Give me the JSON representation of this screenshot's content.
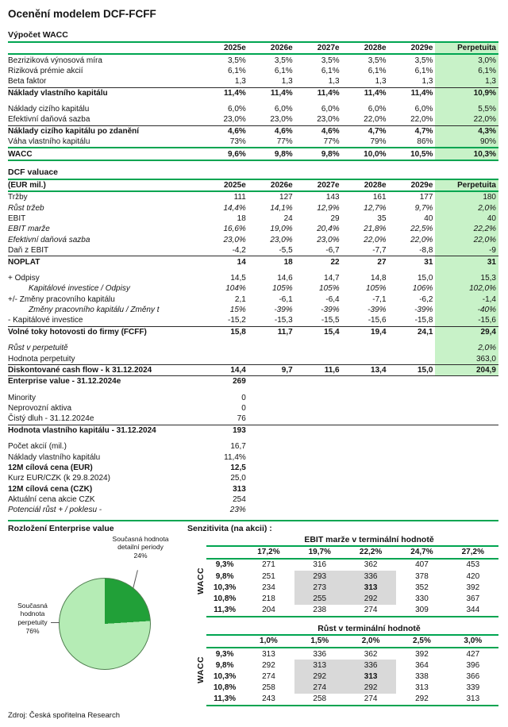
{
  "title": "Ocenění modelem DCF-FCFF",
  "source": "Zdroj: Česká spořitelna Research",
  "colors": {
    "line_green": "#00a551",
    "highlight_green": "#c8f2c8",
    "pie_dark": "#21a038",
    "pie_light": "#b5ecb5",
    "sens_gray": "#d9d9d9"
  },
  "wacc": {
    "heading": "Výpočet WACC",
    "columns": [
      "",
      "2025e",
      "2026e",
      "2027e",
      "2028e",
      "2029e",
      "Perpetuita"
    ],
    "rows": [
      {
        "label": "Bezriziková výnosová míra",
        "values": [
          "3,5%",
          "3,5%",
          "3,5%",
          "3,5%",
          "3,5%",
          "3,0%"
        ],
        "hl": true
      },
      {
        "label": "Riziková prémie akcií",
        "values": [
          "6,1%",
          "6,1%",
          "6,1%",
          "6,1%",
          "6,1%",
          "6,1%"
        ],
        "hl": true
      },
      {
        "label": "Beta faktor",
        "values": [
          "1,3",
          "1,3",
          "1,3",
          "1,3",
          "1,3",
          "1,3"
        ],
        "hl": true
      },
      {
        "label": "Náklady vlastního kapitálu",
        "values": [
          "11,4%",
          "11,4%",
          "11,4%",
          "11,4%",
          "11,4%",
          "10,9%"
        ],
        "style": "bold",
        "line": "black",
        "hl": true
      },
      {
        "spacer": true,
        "hl": true
      },
      {
        "label": "Náklady cizího kapitálu",
        "values": [
          "6,0%",
          "6,0%",
          "6,0%",
          "6,0%",
          "6,0%",
          "5,5%"
        ],
        "hl": true
      },
      {
        "label": "Efektivní daňová sazba",
        "values": [
          "23,0%",
          "23,0%",
          "23,0%",
          "22,0%",
          "22,0%",
          "22,0%"
        ],
        "hl": true
      },
      {
        "label": "Náklady cizího kapitálu po zdanění",
        "values": [
          "4,6%",
          "4,6%",
          "4,6%",
          "4,7%",
          "4,7%",
          "4,3%"
        ],
        "style": "bold",
        "line": "black",
        "hl": true
      },
      {
        "label": "Váha vlastního kapitálu",
        "values": [
          "73%",
          "77%",
          "77%",
          "79%",
          "86%",
          "90%"
        ],
        "hl": true
      },
      {
        "label": "WACC",
        "values": [
          "9,6%",
          "9,8%",
          "9,8%",
          "10,0%",
          "10,5%",
          "10,3%"
        ],
        "style": "bold",
        "line": "green",
        "bline": "green",
        "hl": true
      }
    ]
  },
  "dcf": {
    "heading": "DCF valuace",
    "columns": [
      "(EUR mil.)",
      "2025e",
      "2026e",
      "2027e",
      "2028e",
      "2029e",
      "Perpetuita"
    ],
    "rows": [
      {
        "label": "Tržby",
        "values": [
          "111",
          "127",
          "143",
          "161",
          "177",
          "180"
        ],
        "hl": true
      },
      {
        "label": "Růst tržeb",
        "values": [
          "14,4%",
          "14,1%",
          "12,9%",
          "12,7%",
          "9,7%",
          "2,0%"
        ],
        "style": "italic",
        "hl": true
      },
      {
        "label": "EBIT",
        "values": [
          "18",
          "24",
          "29",
          "35",
          "40",
          "40"
        ],
        "hl": true
      },
      {
        "label": "EBIT marže",
        "values": [
          "16,6%",
          "19,0%",
          "20,4%",
          "21,8%",
          "22,5%",
          "22,2%"
        ],
        "style": "italic",
        "hl": true
      },
      {
        "label": "Efektivní daňová sazba",
        "values": [
          "23,0%",
          "23,0%",
          "23,0%",
          "22,0%",
          "22,0%",
          "22,0%"
        ],
        "style": "italic",
        "hl": true
      },
      {
        "label": "Daň z EBIT",
        "values": [
          "-4,2",
          "-5,5",
          "-6,7",
          "-7,7",
          "-8,8",
          "-9"
        ],
        "hl": true
      },
      {
        "label": "NOPLAT",
        "values": [
          "14",
          "18",
          "22",
          "27",
          "31",
          "31"
        ],
        "style": "bold",
        "line": "black",
        "hl": true
      },
      {
        "spacer": true,
        "hl": true
      },
      {
        "label": "+ Odpisy",
        "values": [
          "14,5",
          "14,6",
          "14,7",
          "14,8",
          "15,0",
          "15,3"
        ],
        "hl": true
      },
      {
        "label": "Kapitálové investice / Odpisy",
        "values": [
          "104%",
          "105%",
          "105%",
          "105%",
          "106%",
          "102,0%"
        ],
        "style": "italic indent",
        "hl": true
      },
      {
        "label": "+/- Změny pracovního kapitálu",
        "values": [
          "2,1",
          "-6,1",
          "-6,4",
          "-7,1",
          "-6,2",
          "-1,4"
        ],
        "hl": true
      },
      {
        "label": "Změny pracovního kapitálu / Změny t",
        "values": [
          "15%",
          "-39%",
          "-39%",
          "-39%",
          "-39%",
          "-40%"
        ],
        "style": "italic indent",
        "hl": true
      },
      {
        "label": "- Kapitálové investice",
        "values": [
          "-15,2",
          "-15,3",
          "-15,5",
          "-15,6",
          "-15,8",
          "-15,6"
        ],
        "hl": true
      },
      {
        "label": "Volné toky hotovosti do firmy (FCFF)",
        "values": [
          "15,8",
          "11,7",
          "15,4",
          "19,4",
          "24,1",
          "29,4"
        ],
        "style": "bold",
        "line": "black",
        "hl": true
      },
      {
        "spacer": true,
        "hl": true
      },
      {
        "label": "Růst v perpetuitě",
        "values": [
          "",
          "",
          "",
          "",
          "",
          "2,0%"
        ],
        "style": "italic",
        "hl": true
      },
      {
        "label": "Hodnota perpetuity",
        "values": [
          "",
          "",
          "",
          "",
          "",
          "363,0"
        ],
        "hl": true
      },
      {
        "label": "Diskontované cash flow - k 31.12.2024",
        "values": [
          "14,4",
          "9,7",
          "11,6",
          "13,4",
          "15,0",
          "204,9"
        ],
        "style": "bold",
        "line": "black",
        "hl": true
      },
      {
        "label": "Enterprise value - 31.12.2024e",
        "values": [
          "269",
          "",
          "",
          "",
          "",
          ""
        ],
        "style": "bold",
        "line": "black"
      },
      {
        "spacer": true
      },
      {
        "label": "Minority",
        "values": [
          "0",
          "",
          "",
          "",
          "",
          ""
        ]
      },
      {
        "label": "Neprovozní aktiva",
        "values": [
          "0",
          "",
          "",
          "",
          "",
          ""
        ]
      },
      {
        "label": "Čistý dluh - 31.12.2024e",
        "values": [
          "76",
          "",
          "",
          "",
          "",
          ""
        ]
      },
      {
        "label": "Hodnota vlastního kapitálu - 31.12.2024",
        "values": [
          "193",
          "",
          "",
          "",
          "",
          ""
        ],
        "style": "bold",
        "line": "black"
      },
      {
        "spacer": true
      },
      {
        "label": "Počet akcií (mil.)",
        "values": [
          "16,7",
          "",
          "",
          "",
          "",
          ""
        ]
      },
      {
        "label": "Náklady vlastního kapitálu",
        "values": [
          "11,4%",
          "",
          "",
          "",
          "",
          ""
        ]
      },
      {
        "label": "12M cílová cena (EUR)",
        "values": [
          "12,5",
          "",
          "",
          "",
          "",
          ""
        ],
        "style": "bold"
      },
      {
        "label": "Kurz EUR/CZK (k 29.8.2024)",
        "values": [
          "25,0",
          "",
          "",
          "",
          "",
          ""
        ]
      },
      {
        "label": "12M cílová cena (CZK)",
        "values": [
          "313",
          "",
          "",
          "",
          "",
          ""
        ],
        "style": "bold"
      },
      {
        "label": "Aktuální cena akcie CZK",
        "values": [
          "254",
          "",
          "",
          "",
          "",
          ""
        ]
      },
      {
        "label": "Potenciál růst + / poklesu -",
        "values": [
          "23%",
          "",
          "",
          "",
          "",
          ""
        ],
        "style": "italic"
      }
    ]
  },
  "breakdown": {
    "heading": "Rozložení Enterprise value",
    "slices": [
      {
        "label": "Současná hodnota detailní periody",
        "pct": "24%",
        "value": 24,
        "color": "#21a038"
      },
      {
        "label": "Současná hodnota perpetuity",
        "pct": "76%",
        "value": 76,
        "color": "#b5ecb5"
      }
    ]
  },
  "chart_data": {
    "type": "pie",
    "title": "Rozložení Enterprise value",
    "labels": [
      "Současná hodnota detailní periody",
      "Současná hodnota perpetuity"
    ],
    "values": [
      24,
      76
    ],
    "colors": [
      "#21a038",
      "#b5ecb5"
    ],
    "legend_position": "around"
  },
  "sensitivity": {
    "heading": "Senzitivita (na akcii) :",
    "axis_label": "WACC",
    "tables": [
      {
        "title": "EBIT marže v terminální hodnotě",
        "columns": [
          "17,2%",
          "19,7%",
          "22,2%",
          "24,7%",
          "27,2%"
        ],
        "row_labels": [
          "9,3%",
          "9,8%",
          "10,3%",
          "10,8%",
          "11,3%"
        ],
        "rows": [
          [
            271,
            316,
            362,
            407,
            453
          ],
          [
            251,
            293,
            336,
            378,
            420
          ],
          [
            234,
            273,
            313,
            352,
            392
          ],
          [
            218,
            255,
            292,
            330,
            367
          ],
          [
            204,
            238,
            274,
            309,
            344
          ]
        ],
        "highlight": {
          "rows": [
            1,
            2,
            3
          ],
          "cols": [
            1,
            2
          ]
        },
        "bold_cell": {
          "row": 2,
          "col": 2
        }
      },
      {
        "title": "Růst v terminální hodnotě",
        "columns": [
          "1,0%",
          "1,5%",
          "2,0%",
          "2,5%",
          "3,0%"
        ],
        "row_labels": [
          "9,3%",
          "9,8%",
          "10,3%",
          "10,8%",
          "11,3%"
        ],
        "rows": [
          [
            313,
            336,
            362,
            392,
            427
          ],
          [
            292,
            313,
            336,
            364,
            396
          ],
          [
            274,
            292,
            313,
            338,
            366
          ],
          [
            258,
            274,
            292,
            313,
            339
          ],
          [
            243,
            258,
            274,
            292,
            313
          ]
        ],
        "highlight": {
          "rows": [
            1,
            2,
            3
          ],
          "cols": [
            1,
            2
          ]
        },
        "bold_cell": {
          "row": 2,
          "col": 2
        }
      }
    ]
  }
}
